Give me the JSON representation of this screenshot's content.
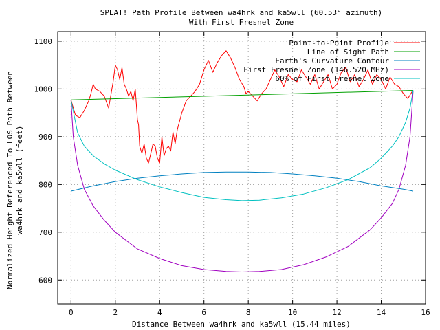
{
  "chart_data": {
    "type": "line",
    "title": "SPLAT! Path Profile Between wa4hrk and ka5wll (60.53° azimuth)",
    "subtitle": "With First Fresnel Zone",
    "xlabel": "Distance Between wa4hrk and ka5wll (15.44 miles)",
    "ylabel_line1": "Normalized Height Referenced To LOS Path Between",
    "ylabel_line2": "wa4hrk and ka5wll (feet)",
    "xlim": [
      -0.6,
      16
    ],
    "ylim": [
      550,
      1120
    ],
    "x_ticks": [
      0,
      2,
      4,
      6,
      8,
      10,
      12,
      14,
      16
    ],
    "y_ticks": [
      600,
      700,
      800,
      900,
      1000,
      1100
    ],
    "grid": true,
    "legend_position": "top-right",
    "series": [
      {
        "name": "Point-to-Point Profile",
        "color": "#ff0000",
        "x": [
          0,
          0.2,
          0.4,
          0.6,
          0.8,
          0.9,
          1.0,
          1.1,
          1.3,
          1.5,
          1.7,
          1.9,
          2.0,
          2.1,
          2.2,
          2.3,
          2.4,
          2.5,
          2.6,
          2.7,
          2.8,
          2.9,
          3.0,
          3.05,
          3.1,
          3.2,
          3.3,
          3.4,
          3.5,
          3.6,
          3.7,
          3.8,
          3.9,
          4.0,
          4.1,
          4.2,
          4.3,
          4.4,
          4.5,
          4.6,
          4.7,
          4.8,
          5.0,
          5.2,
          5.4,
          5.6,
          5.8,
          6.0,
          6.2,
          6.4,
          6.6,
          6.8,
          7.0,
          7.2,
          7.4,
          7.6,
          7.8,
          7.9,
          8.0,
          8.2,
          8.4,
          8.6,
          8.8,
          9.0,
          9.2,
          9.4,
          9.6,
          9.8,
          10.0,
          10.2,
          10.4,
          10.6,
          10.8,
          11.0,
          11.2,
          11.4,
          11.6,
          11.8,
          12.0,
          12.2,
          12.4,
          12.6,
          12.8,
          13.0,
          13.2,
          13.4,
          13.6,
          13.8,
          14.0,
          14.2,
          14.4,
          14.6,
          14.8,
          15.0,
          15.2,
          15.4
        ],
        "y": [
          977,
          945,
          940,
          955,
          975,
          990,
          1010,
          1000,
          995,
          985,
          960,
          1015,
          1050,
          1040,
          1020,
          1045,
          1010,
          1000,
          985,
          995,
          975,
          1000,
          935,
          925,
          880,
          865,
          885,
          855,
          845,
          865,
          885,
          880,
          855,
          845,
          900,
          860,
          875,
          880,
          870,
          910,
          885,
          915,
          950,
          975,
          985,
          995,
          1010,
          1040,
          1060,
          1035,
          1055,
          1070,
          1080,
          1065,
          1045,
          1020,
          1005,
          990,
          995,
          985,
          975,
          990,
          1000,
          1020,
          1040,
          1025,
          1005,
          1030,
          1020,
          1015,
          1040,
          1025,
          1010,
          1030,
          1000,
          1015,
          1030,
          1000,
          1010,
          1035,
          1045,
          1015,
          1030,
          1005,
          1020,
          1040,
          1010,
          1030,
          1020,
          1000,
          1025,
          1010,
          1005,
          990,
          980,
          995
        ]
      },
      {
        "name": "Line of Sight Path",
        "color": "#00a000",
        "x": [
          0,
          15.44
        ],
        "y": [
          977,
          997
        ]
      },
      {
        "name": "Earth's Curvature Contour",
        "color": "#0080c0",
        "x": [
          0,
          1,
          2,
          3,
          4,
          5,
          6,
          7,
          7.72,
          8,
          9,
          10,
          11,
          12,
          13,
          14,
          15,
          15.44
        ],
        "y": [
          786,
          797,
          806,
          813,
          818,
          822,
          825,
          826,
          826,
          826,
          825,
          822,
          818,
          813,
          806,
          797,
          790,
          786
        ]
      },
      {
        "name": "First Fresnel Zone (146.520 MHz)",
        "color": "#a000c0",
        "x": [
          0,
          0.1,
          0.3,
          0.6,
          1,
          1.5,
          2,
          3,
          4,
          5,
          6,
          7,
          7.72,
          8.5,
          9.5,
          10.5,
          11.5,
          12.5,
          13.5,
          14,
          14.5,
          14.8,
          15.1,
          15.3,
          15.44
        ],
        "y": [
          977,
          900,
          840,
          790,
          755,
          725,
          700,
          665,
          645,
          630,
          622,
          618,
          617,
          618,
          622,
          632,
          648,
          670,
          705,
          730,
          760,
          790,
          840,
          900,
          997
        ]
      },
      {
        "name": "60% of First Fresnel Zone",
        "color": "#00c0c0",
        "x": [
          0,
          0.3,
          0.6,
          1,
          1.5,
          2,
          3,
          4,
          5,
          6,
          7,
          7.72,
          8.5,
          9.5,
          10.5,
          11.5,
          12.5,
          13.5,
          14,
          14.5,
          14.8,
          15.1,
          15.3,
          15.44
        ],
        "y": [
          977,
          908,
          880,
          860,
          843,
          830,
          810,
          795,
          783,
          773,
          768,
          766,
          767,
          772,
          780,
          793,
          810,
          835,
          855,
          880,
          900,
          930,
          960,
          997
        ]
      }
    ]
  }
}
